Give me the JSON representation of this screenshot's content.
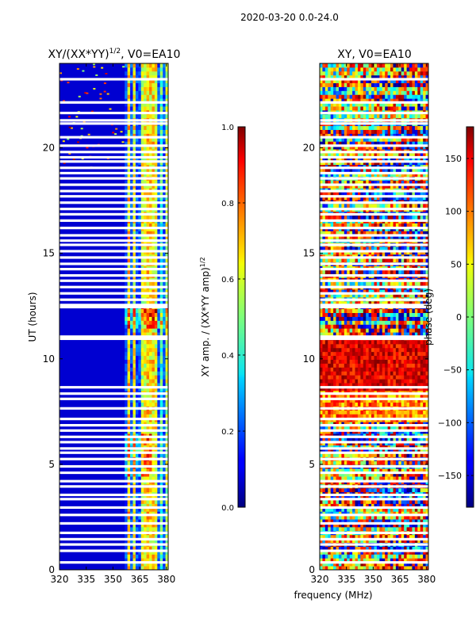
{
  "suptitle": "2020-03-20 0.0-24.0",
  "xlabel_shared": "frequency (MHz)",
  "chart_data": [
    {
      "type": "heatmap",
      "title_main": "XY/(XX*YY)",
      "title_sup": "1/2",
      "title_tail": ", V0=EA10",
      "ylabel": "UT (hours)",
      "xlim": [
        320,
        381
      ],
      "ylim": [
        0,
        24
      ],
      "xticks": [
        "320",
        "335",
        "350",
        "365",
        "380"
      ],
      "yticks": [
        "0",
        "5",
        "10",
        "15",
        "20"
      ],
      "colorbar": {
        "label_main": "XY amp. / (XX*YY amp)",
        "label_sup": "1/2",
        "vmin": 0.0,
        "vmax": 1.0,
        "ticks": [
          "0.0",
          "0.2",
          "0.4",
          "0.6",
          "0.8",
          "1.0"
        ],
        "colormap": "jet"
      },
      "bright_band_mhz": [
        357,
        380
      ],
      "peak_region_hours": [
        11.5,
        12.5
      ]
    },
    {
      "type": "heatmap",
      "title": "XY, V0=EA10",
      "ylabel": "",
      "xlim": [
        320,
        381
      ],
      "ylim": [
        0,
        24
      ],
      "xticks": [
        "320",
        "335",
        "350",
        "365",
        "380"
      ],
      "yticks": [
        "0",
        "5",
        "10",
        "15",
        "20"
      ],
      "colorbar": {
        "label": "phase (deg)",
        "vmin": -180,
        "vmax": 180,
        "ticks": [
          "−150",
          "−100",
          "−50",
          "0",
          "50",
          "100",
          "150"
        ],
        "colormap": "jet"
      },
      "red_region_hours": [
        8.5,
        11.0
      ]
    }
  ],
  "flagged_gaps_hours": [
    0.35,
    0.9,
    1.2,
    1.45,
    1.75,
    2.2,
    2.6,
    2.95,
    3.35,
    3.55,
    3.95,
    4.2,
    4.6,
    4.9,
    5.25,
    5.55,
    5.75,
    6.05,
    6.3,
    6.6,
    6.85,
    7.15,
    7.65,
    8.1,
    8.35,
    8.65,
    10.95,
    11.05,
    12.45,
    12.55,
    12.8,
    13.1,
    13.4,
    13.7,
    13.95,
    14.25,
    14.5,
    14.8,
    15.1,
    15.4,
    15.6,
    15.85,
    16.2,
    16.55,
    16.85,
    17.1,
    17.4,
    17.7,
    17.95,
    18.25,
    18.55,
    18.8,
    19.05,
    19.35,
    19.55,
    19.8,
    20.1,
    20.5,
    21.15,
    21.3,
    21.65,
    22.15,
    23.25
  ]
}
